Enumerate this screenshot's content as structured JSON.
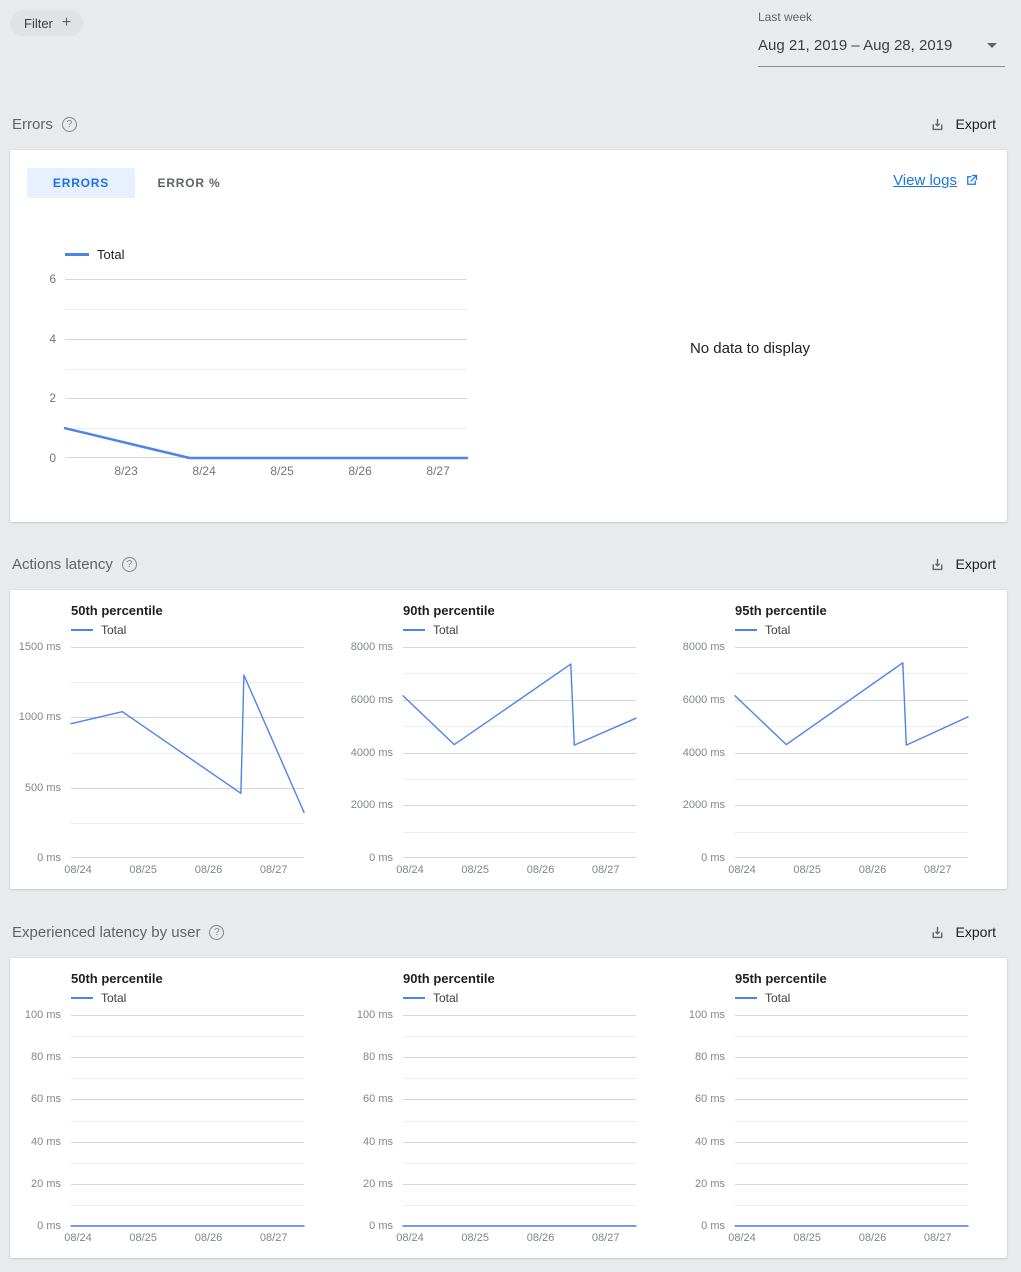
{
  "colors": {
    "page_bg": "#e8eaed",
    "card_bg": "#ffffff",
    "accent_blue": "#1a73e8",
    "line_blue": "#4e83ea",
    "tab_selected_bg": "#e8f0fe",
    "grid_major": "#d5d7da",
    "grid_minor": "#ecedef",
    "axis_label": "#80868b"
  },
  "topbar": {
    "filter_label": "Filter",
    "range_label": "Last week",
    "range_value": "Aug 21, 2019 – Aug 28, 2019"
  },
  "sections": {
    "errors": {
      "title": "Errors",
      "export_label": "Export"
    },
    "actions_latency": {
      "title": "Actions latency",
      "export_label": "Export"
    },
    "experienced_latency": {
      "title": "Experienced latency by user",
      "export_label": "Export"
    }
  },
  "errors_card": {
    "tabs": [
      {
        "label": "ERRORS",
        "selected": true
      },
      {
        "label": "ERROR %",
        "selected": false
      }
    ],
    "view_logs_label": "View logs",
    "no_data_text": "No data to display"
  },
  "chart_data": [
    {
      "id": "errors-total",
      "type": "line",
      "title": "",
      "legend_position": "top-left",
      "ylim": [
        0,
        6
      ],
      "yticks": [
        {
          "v": 0,
          "label": "0"
        },
        {
          "v": 2,
          "label": "2"
        },
        {
          "v": 4,
          "label": "4"
        },
        {
          "v": 6,
          "label": "6"
        }
      ],
      "minor_yticks": [
        1,
        3,
        5
      ],
      "xticks": [
        {
          "f": 0.152,
          "label": "8/23"
        },
        {
          "f": 0.346,
          "label": "8/24"
        },
        {
          "f": 0.54,
          "label": "8/25"
        },
        {
          "f": 0.734,
          "label": "8/26"
        },
        {
          "f": 0.928,
          "label": "8/27"
        }
      ],
      "series": [
        {
          "name": "Total",
          "points": [
            [
              0,
              1
            ],
            [
              0.31,
              0
            ],
            [
              1,
              0
            ]
          ]
        }
      ],
      "line_width": 2.5
    },
    {
      "id": "actions-latency-p50",
      "type": "line",
      "title": "50th percentile",
      "legend_position": "top-left",
      "ylim": [
        0,
        1500
      ],
      "yticks": [
        {
          "v": 0,
          "label": "0 ms"
        },
        {
          "v": 500,
          "label": "500 ms"
        },
        {
          "v": 1000,
          "label": "1000 ms"
        },
        {
          "v": 1500,
          "label": "1500 ms"
        }
      ],
      "minor_yticks": [
        250,
        750,
        1250
      ],
      "xticks": [
        {
          "f": 0.03,
          "label": "08/24"
        },
        {
          "f": 0.31,
          "label": "08/25"
        },
        {
          "f": 0.59,
          "label": "08/26"
        },
        {
          "f": 0.87,
          "label": "08/27"
        }
      ],
      "series": [
        {
          "name": "Total",
          "points": [
            [
              0,
              955
            ],
            [
              0.22,
              1040
            ],
            [
              0.729,
              460
            ],
            [
              0.742,
              1300
            ],
            [
              1,
              325
            ]
          ]
        }
      ],
      "line_width": 1.4
    },
    {
      "id": "actions-latency-p90",
      "type": "line",
      "title": "90th percentile",
      "legend_position": "top-left",
      "ylim": [
        0,
        8000
      ],
      "yticks": [
        {
          "v": 0,
          "label": "0 ms"
        },
        {
          "v": 2000,
          "label": "2000 ms"
        },
        {
          "v": 4000,
          "label": "4000 ms"
        },
        {
          "v": 6000,
          "label": "6000 ms"
        },
        {
          "v": 8000,
          "label": "8000 ms"
        }
      ],
      "minor_yticks": [
        1000,
        3000,
        5000,
        7000
      ],
      "xticks": [
        {
          "f": 0.03,
          "label": "08/24"
        },
        {
          "f": 0.31,
          "label": "08/25"
        },
        {
          "f": 0.59,
          "label": "08/26"
        },
        {
          "f": 0.87,
          "label": "08/27"
        }
      ],
      "series": [
        {
          "name": "Total",
          "points": [
            [
              0,
              6150
            ],
            [
              0.22,
              4300
            ],
            [
              0.72,
              7350
            ],
            [
              0.735,
              4280
            ],
            [
              1,
              5300
            ]
          ]
        }
      ],
      "line_width": 1.4
    },
    {
      "id": "actions-latency-p95",
      "type": "line",
      "title": "95th percentile",
      "legend_position": "top-left",
      "ylim": [
        0,
        8000
      ],
      "yticks": [
        {
          "v": 0,
          "label": "0 ms"
        },
        {
          "v": 2000,
          "label": "2000 ms"
        },
        {
          "v": 4000,
          "label": "4000 ms"
        },
        {
          "v": 6000,
          "label": "6000 ms"
        },
        {
          "v": 8000,
          "label": "8000 ms"
        }
      ],
      "minor_yticks": [
        1000,
        3000,
        5000,
        7000
      ],
      "xticks": [
        {
          "f": 0.03,
          "label": "08/24"
        },
        {
          "f": 0.31,
          "label": "08/25"
        },
        {
          "f": 0.59,
          "label": "08/26"
        },
        {
          "f": 0.87,
          "label": "08/27"
        }
      ],
      "series": [
        {
          "name": "Total",
          "points": [
            [
              0,
              6150
            ],
            [
              0.22,
              4300
            ],
            [
              0.72,
              7400
            ],
            [
              0.735,
              4280
            ],
            [
              1,
              5350
            ]
          ]
        }
      ],
      "line_width": 1.4
    },
    {
      "id": "experienced-latency-p50",
      "type": "line",
      "title": "50th percentile",
      "legend_position": "top-left",
      "ylim": [
        0,
        100
      ],
      "yticks": [
        {
          "v": 0,
          "label": "0 ms"
        },
        {
          "v": 20,
          "label": "20 ms"
        },
        {
          "v": 40,
          "label": "40 ms"
        },
        {
          "v": 60,
          "label": "60 ms"
        },
        {
          "v": 80,
          "label": "80 ms"
        },
        {
          "v": 100,
          "label": "100 ms"
        }
      ],
      "minor_yticks": [
        10,
        30,
        50,
        70,
        90
      ],
      "xticks": [
        {
          "f": 0.03,
          "label": "08/24"
        },
        {
          "f": 0.31,
          "label": "08/25"
        },
        {
          "f": 0.59,
          "label": "08/26"
        },
        {
          "f": 0.87,
          "label": "08/27"
        }
      ],
      "series": [
        {
          "name": "Total",
          "points": [
            [
              0,
              0
            ],
            [
              1,
              0
            ]
          ]
        }
      ],
      "line_width": 1.4
    },
    {
      "id": "experienced-latency-p90",
      "type": "line",
      "title": "90th percentile",
      "legend_position": "top-left",
      "ylim": [
        0,
        100
      ],
      "yticks": [
        {
          "v": 0,
          "label": "0 ms"
        },
        {
          "v": 20,
          "label": "20 ms"
        },
        {
          "v": 40,
          "label": "40 ms"
        },
        {
          "v": 60,
          "label": "60 ms"
        },
        {
          "v": 80,
          "label": "80 ms"
        },
        {
          "v": 100,
          "label": "100 ms"
        }
      ],
      "minor_yticks": [
        10,
        30,
        50,
        70,
        90
      ],
      "xticks": [
        {
          "f": 0.03,
          "label": "08/24"
        },
        {
          "f": 0.31,
          "label": "08/25"
        },
        {
          "f": 0.59,
          "label": "08/26"
        },
        {
          "f": 0.87,
          "label": "08/27"
        }
      ],
      "series": [
        {
          "name": "Total",
          "points": [
            [
              0,
              0
            ],
            [
              1,
              0
            ]
          ]
        }
      ],
      "line_width": 1.4
    },
    {
      "id": "experienced-latency-p95",
      "type": "line",
      "title": "95th percentile",
      "legend_position": "top-left",
      "ylim": [
        0,
        100
      ],
      "yticks": [
        {
          "v": 0,
          "label": "0 ms"
        },
        {
          "v": 20,
          "label": "20 ms"
        },
        {
          "v": 40,
          "label": "40 ms"
        },
        {
          "v": 60,
          "label": "60 ms"
        },
        {
          "v": 80,
          "label": "80 ms"
        },
        {
          "v": 100,
          "label": "100 ms"
        }
      ],
      "minor_yticks": [
        10,
        30,
        50,
        70,
        90
      ],
      "xticks": [
        {
          "f": 0.03,
          "label": "08/24"
        },
        {
          "f": 0.31,
          "label": "08/25"
        },
        {
          "f": 0.59,
          "label": "08/26"
        },
        {
          "f": 0.87,
          "label": "08/27"
        }
      ],
      "series": [
        {
          "name": "Total",
          "points": [
            [
              0,
              0
            ],
            [
              1,
              0
            ]
          ]
        }
      ],
      "line_width": 1.4
    }
  ]
}
